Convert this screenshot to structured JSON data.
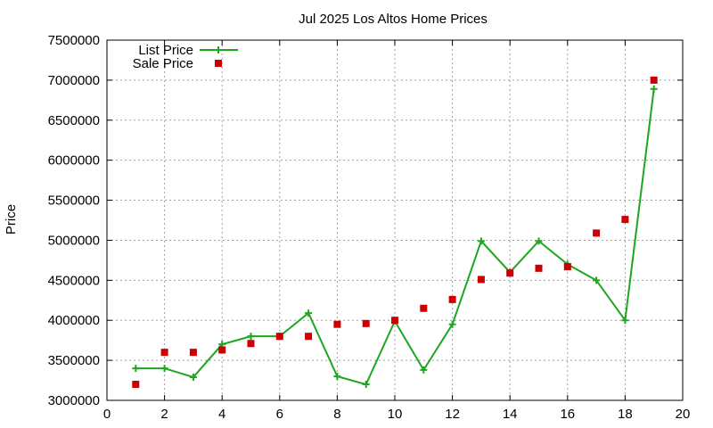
{
  "chart_data": {
    "type": "line",
    "title": "Jul 2025 Los Altos Home Prices",
    "xlabel": "",
    "ylabel": "Price",
    "xlim": [
      0,
      20
    ],
    "ylim": [
      3000000,
      7500000
    ],
    "x_ticks": [
      0,
      2,
      4,
      6,
      8,
      10,
      12,
      14,
      16,
      18,
      20
    ],
    "y_ticks": [
      3000000,
      3500000,
      4000000,
      4500000,
      5000000,
      5500000,
      6000000,
      6500000,
      7000000,
      7500000
    ],
    "grid": true,
    "legend_position": "top-left",
    "series": [
      {
        "name": "List Price",
        "style": "line-with-plus-markers",
        "color": "#1ea61e",
        "x": [
          1,
          2,
          3,
          4,
          5,
          6,
          7,
          8,
          9,
          10,
          11,
          12,
          13,
          14,
          15,
          16,
          17,
          18,
          19
        ],
        "y": [
          3400000,
          3400000,
          3290000,
          3700000,
          3800000,
          3800000,
          4090000,
          3300000,
          3200000,
          3990000,
          3380000,
          3950000,
          4990000,
          4600000,
          4990000,
          4700000,
          4500000,
          4000000,
          6890000
        ]
      },
      {
        "name": "Sale Price",
        "style": "square-markers",
        "color": "#cc0000",
        "x": [
          1,
          2,
          3,
          4,
          5,
          6,
          7,
          8,
          9,
          10,
          11,
          12,
          13,
          14,
          15,
          16,
          17,
          18,
          19
        ],
        "y": [
          3200000,
          3600000,
          3600000,
          3630000,
          3710000,
          3800000,
          3800000,
          3950000,
          3960000,
          4000000,
          4150000,
          4260000,
          4510000,
          4590000,
          4650000,
          4670000,
          5090000,
          5260000,
          7000000
        ]
      }
    ]
  }
}
